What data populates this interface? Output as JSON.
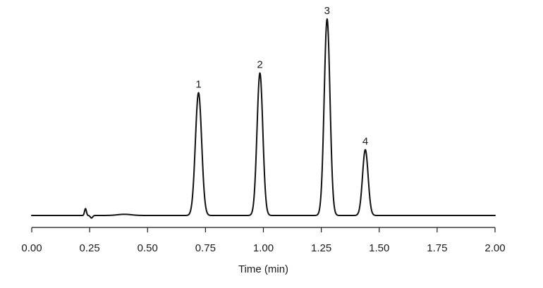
{
  "chart_data": {
    "type": "line",
    "title": "",
    "xlabel": "Time (min)",
    "ylabel": "",
    "xlim": [
      0,
      2
    ],
    "ylim": [
      0,
      100
    ],
    "grid": false,
    "x_ticks": [
      "0.00",
      "0.25",
      "0.50",
      "0.75",
      "1.00",
      "1.25",
      "1.50",
      "1.75",
      "2.00"
    ],
    "baseline": 0,
    "disturbances": [
      {
        "x": 0.232,
        "height": 3.5,
        "width": 0.004
      },
      {
        "x": 0.258,
        "height": -1.3,
        "width": 0.005
      },
      {
        "x": 0.4,
        "height": 0.6,
        "width": 0.03
      }
    ],
    "peaks": [
      {
        "label": "1",
        "retention_time": 0.72,
        "height": 62.5,
        "width": 0.0135
      },
      {
        "label": "2",
        "retention_time": 0.985,
        "height": 72.5,
        "width": 0.0125
      },
      {
        "label": "3",
        "retention_time": 1.275,
        "height": 100,
        "width": 0.0125
      },
      {
        "label": "4",
        "retention_time": 1.44,
        "height": 33.5,
        "width": 0.012
      }
    ],
    "color": "#111111"
  }
}
